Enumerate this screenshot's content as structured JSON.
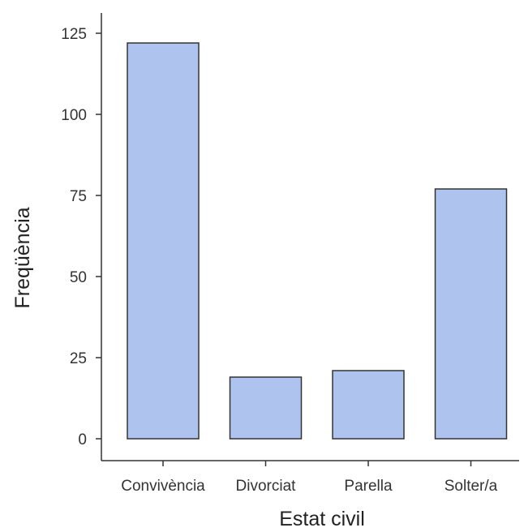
{
  "chart_data": {
    "type": "bar",
    "title": "",
    "xlabel": "Estat civil",
    "ylabel": "Freqüència",
    "categories": [
      "Convivència",
      "Divorciat",
      "Parella",
      "Solter/a"
    ],
    "values": [
      122,
      19,
      21,
      77
    ],
    "ylim": [
      0,
      125
    ],
    "yticks": [
      0,
      25,
      50,
      75,
      100,
      125
    ],
    "grid": false,
    "legend": "none",
    "bar_color": "#aec4ee",
    "bar_edge_color": "#333333"
  }
}
